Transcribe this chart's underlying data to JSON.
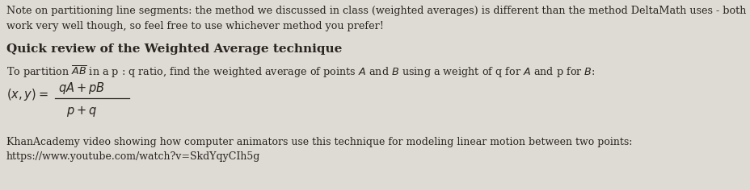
{
  "bg_color": "#dedad4",
  "text_color": "#2a2520",
  "figsize": [
    9.29,
    2.36
  ],
  "dpi": 100,
  "line1": "Note on partitioning line segments: the method we discussed in class (weighted averages) is different than the method DeltaMath uses - both",
  "line2": "work very well though, so feel free to use whichever method you prefer!",
  "heading": "Quick review of the Weighted Average technique",
  "desc_line": "To partition $\\overline{AB}$ in a p : q ratio, find the weighted average of points $A$ and $B$ using a weight of q for $A$ and p for $B$:",
  "formula_left": "$(x, y) = $",
  "formula_num": "$qA + pB$",
  "formula_den": "$p + q$",
  "khan_line1": "KhanAcademy video showing how computer animators use this technique for modeling linear motion between two points:",
  "khan_line2": "https://www.youtube.com/watch?v=SkdYqyCIh5g",
  "note_fontsize": 9.2,
  "heading_fontsize": 11.0,
  "desc_fontsize": 9.2,
  "formula_fontsize": 10.5,
  "khan_fontsize": 9.0
}
